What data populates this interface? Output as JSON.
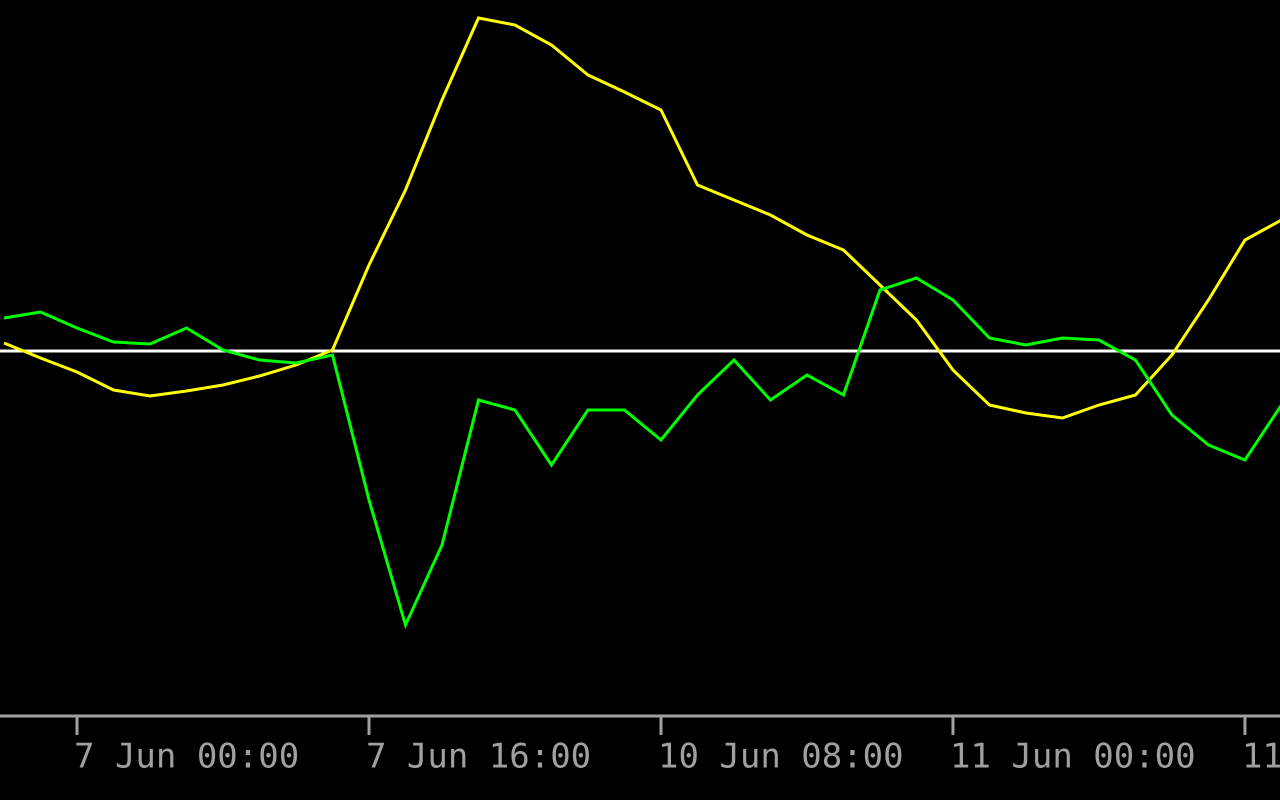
{
  "chart_data": {
    "type": "line",
    "x": [
      0,
      1,
      2,
      3,
      4,
      5,
      6,
      7,
      8,
      9,
      10,
      11,
      12,
      13,
      14,
      15,
      16,
      17,
      18,
      19,
      20,
      21,
      22,
      23,
      24,
      25,
      26,
      27,
      28,
      29,
      30,
      31,
      32,
      33,
      34,
      35
    ],
    "series": [
      {
        "color": "#ffff00",
        "values": [
          8,
          -7,
          -21,
          -39,
          -45,
          -40,
          -34,
          -25,
          -14,
          1,
          86,
          161,
          251,
          333,
          326,
          306,
          276,
          259,
          241,
          166,
          151,
          136,
          116,
          101,
          66,
          31,
          -19,
          -54,
          -62,
          -67,
          -54,
          -44,
          -4,
          51,
          111,
          131
        ]
      },
      {
        "color": "#00ff00",
        "values": [
          33,
          39,
          23,
          9,
          7,
          23,
          1,
          -9,
          -12,
          -4,
          -149,
          -274,
          -194,
          -49,
          -59,
          -114,
          -59,
          -59,
          -89,
          -44,
          -9,
          -49,
          -24,
          -44,
          61,
          73,
          51,
          13,
          6,
          13,
          11,
          -9,
          -64,
          -94,
          -109,
          -54
        ]
      }
    ],
    "level": 0,
    "level_color": "#ffffff",
    "xlim": [
      -0.11,
      34.96
    ],
    "ylim": [
      -364,
      351
    ],
    "xticks": [
      {
        "value": 2,
        "label": "7 Jun 00:00"
      },
      {
        "value": 10,
        "label": "7 Jun 16:00"
      },
      {
        "value": 18,
        "label": "10 Jun 08:00"
      },
      {
        "value": 26,
        "label": "11 Jun 00:00"
      },
      {
        "value": 34,
        "label": "11"
      }
    ]
  }
}
